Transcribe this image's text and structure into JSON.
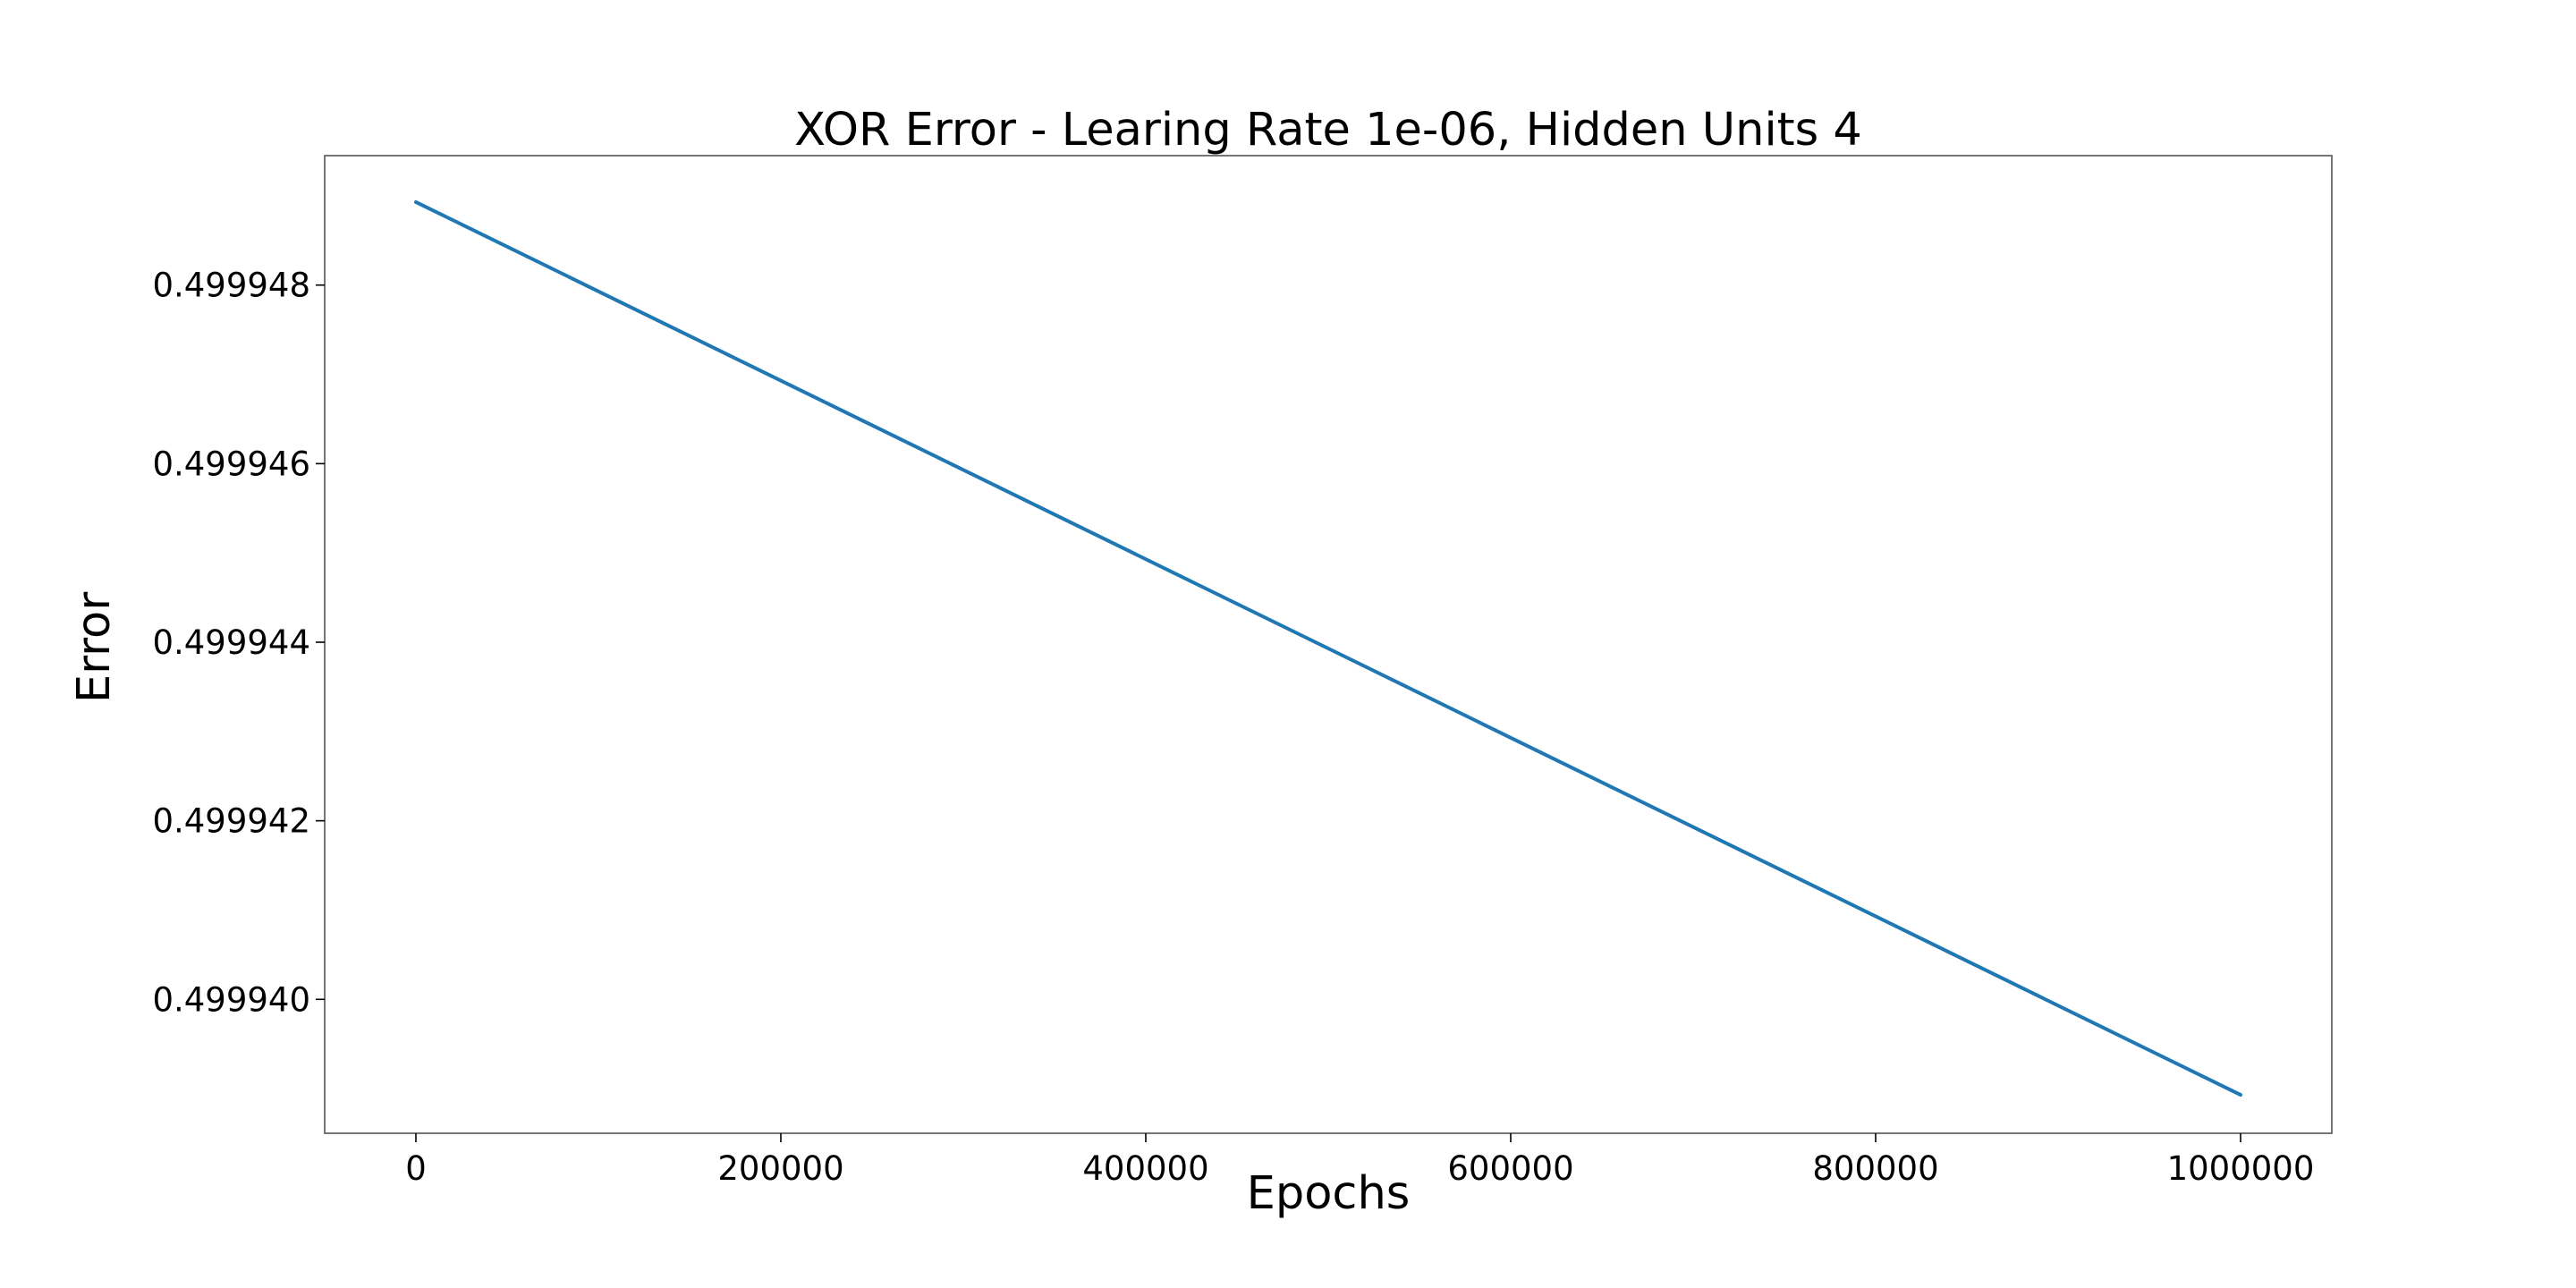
{
  "chart_data": {
    "type": "line",
    "title": "XOR Error - Learing Rate 1e-06, Hidden Units 4",
    "xlabel": "Epochs",
    "ylabel": "Error",
    "xlim": [
      -50000,
      1050000
    ],
    "ylim": [
      0.4999385,
      0.49994945
    ],
    "xticks": [
      0,
      200000,
      400000,
      600000,
      800000,
      1000000
    ],
    "xtick_labels": [
      "0",
      "200000",
      "400000",
      "600000",
      "800000",
      "1000000"
    ],
    "yticks": [
      0.49994,
      0.499942,
      0.499944,
      0.499946,
      0.499948
    ],
    "ytick_labels": [
      "0.499940",
      "0.499942",
      "0.499944",
      "0.499946",
      "0.499948"
    ],
    "grid": false,
    "legend": "none",
    "series": [
      {
        "color": "#1f77b4",
        "x": [
          0,
          1000000
        ],
        "y": [
          0.49994893,
          0.49993893
        ]
      }
    ]
  }
}
